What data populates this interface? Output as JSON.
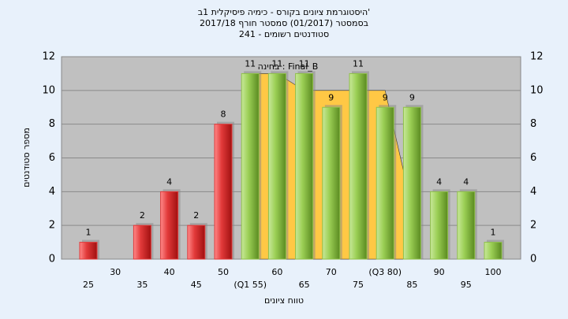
{
  "chart_data": {
    "type": "bar",
    "title": [
      "היסטוגרמת ציונים בקורס - כימיה פיסיקלית 1ב'",
      "בסמסטר (01/2017) סמסטר חורף 2017/18",
      "סטודנטים רשומים - 241"
    ],
    "annotation": "בחינה : Final_B",
    "y_label": "מספר סטודנטים",
    "x_label": "טווח ציונים",
    "categories": [
      "25",
      "30",
      "35",
      "40",
      "45",
      "50",
      "(Q1 55)",
      "60",
      "65",
      "70",
      "75",
      "(Q3 80)",
      "85",
      "90",
      "95",
      "100"
    ],
    "values": [
      1,
      null,
      2,
      4,
      2,
      8,
      11,
      11,
      11,
      9,
      11,
      9,
      9,
      4,
      4,
      1
    ],
    "colors": [
      "#e23a3a",
      null,
      "#e23a3a",
      "#e23a3a",
      "#e23a3a",
      "#e23a3a",
      "#8fc04a",
      "#8fc04a",
      "#8fc04a",
      "#8fc04a",
      "#8fc04a",
      "#8fc04a",
      "#8fc04a",
      "#8fc04a",
      "#8fc04a",
      "#8fc04a"
    ],
    "background_area": {
      "color": "#ffc845",
      "values": [
        null,
        null,
        null,
        null,
        null,
        null,
        11,
        11,
        10,
        10,
        10,
        10,
        3,
        null,
        null,
        null
      ]
    },
    "ylim": [
      0,
      12
    ],
    "yticks": [
      0,
      2,
      4,
      6,
      8,
      10,
      12
    ],
    "grid": true
  }
}
